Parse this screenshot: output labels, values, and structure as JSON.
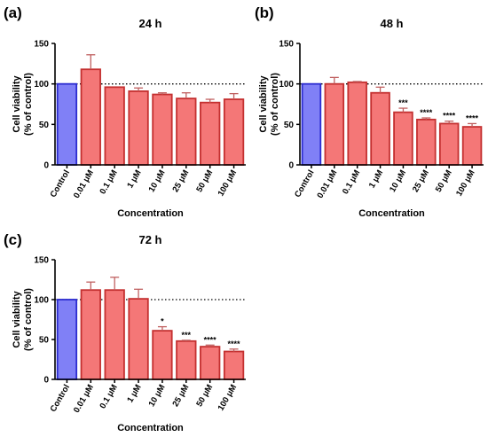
{
  "colors": {
    "control_fill": "#8080f6",
    "control_edge": "#2b2bd0",
    "treat_fill": "#f47777",
    "treat_edge": "#c43030",
    "error_bar": "#c06060",
    "axis": "#000000",
    "reference_line": "#000000"
  },
  "chart_data": [
    {
      "type": "bar",
      "panel": "(a)",
      "title": "24 h",
      "xlabel": "Concentration",
      "ylabel": "Cell viability (% of control)",
      "ylabel_lines": [
        "Cell viability",
        "(% of control)"
      ],
      "ylim": [
        0,
        150
      ],
      "yticks": [
        0,
        50,
        100,
        150
      ],
      "reference_line": 100,
      "categories": [
        "Control",
        "0.01 μM",
        "0.1 μM",
        "1 μM",
        "10 μM",
        "25 μM",
        "50 μM",
        "100 μM"
      ],
      "values": [
        100,
        118,
        96,
        91,
        87,
        82,
        77,
        81
      ],
      "errors": [
        0,
        18,
        0,
        4,
        2,
        7,
        4,
        7
      ],
      "significance": [
        "",
        "",
        "",
        "",
        "",
        "",
        "",
        ""
      ],
      "grid": false
    },
    {
      "type": "bar",
      "panel": "(b)",
      "title": "48 h",
      "xlabel": "Concentration",
      "ylabel": "Cell viability (% of control)",
      "ylabel_lines": [
        "Cell viability",
        "(% of control)"
      ],
      "ylim": [
        0,
        150
      ],
      "yticks": [
        0,
        50,
        100,
        150
      ],
      "reference_line": 100,
      "categories": [
        "Control",
        "0.01 μM",
        "0.1 μM",
        "1 μM",
        "10 μM",
        "25 μM",
        "50 μM",
        "100 μM"
      ],
      "values": [
        100,
        100,
        102,
        89,
        65,
        56,
        51,
        47
      ],
      "errors": [
        0,
        8,
        1,
        7,
        5,
        2,
        3,
        4
      ],
      "significance": [
        "",
        "",
        "",
        "",
        "***",
        "****",
        "****",
        "****"
      ],
      "grid": false
    },
    {
      "type": "bar",
      "panel": "(c)",
      "title": "72 h",
      "xlabel": "Concentration",
      "ylabel": "Cell viability (% of control)",
      "ylabel_lines": [
        "Cell viability",
        "(% of control)"
      ],
      "ylim": [
        0,
        150
      ],
      "yticks": [
        0,
        50,
        100,
        150
      ],
      "reference_line": 100,
      "categories": [
        "Control",
        "0.01 μM",
        "0.1 μM",
        "1 μM",
        "10 μM",
        "25 μM",
        "50 μM",
        "100 μM"
      ],
      "values": [
        100,
        112,
        112,
        101,
        61,
        48,
        41,
        35
      ],
      "errors": [
        0,
        10,
        16,
        12,
        5,
        1,
        2,
        3
      ],
      "significance": [
        "",
        "",
        "",
        "",
        "*",
        "***",
        "****",
        "****"
      ],
      "grid": false
    }
  ]
}
